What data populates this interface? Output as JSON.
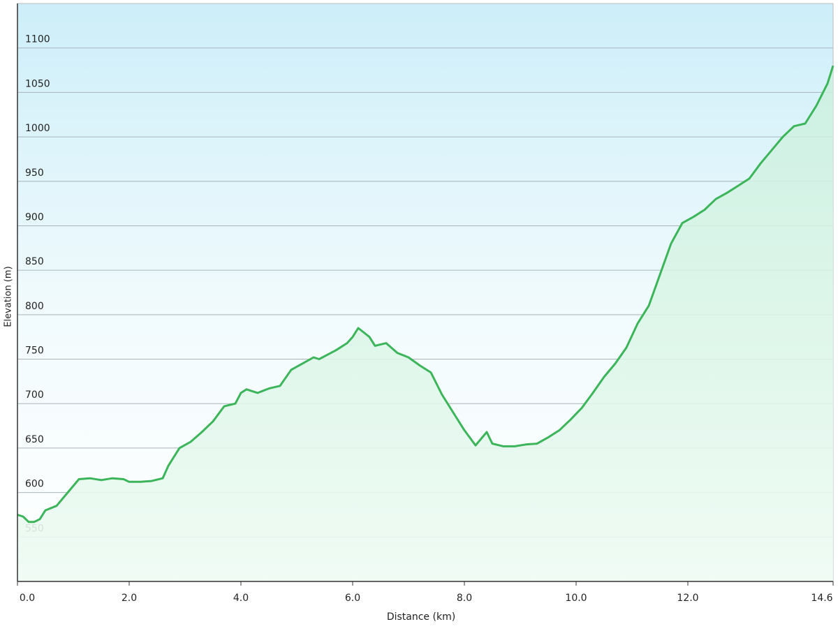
{
  "chart_data": {
    "type": "area",
    "x_label": "Distance  (km)",
    "y_label": "Elevation (m)",
    "x": [
      0.0,
      0.1,
      0.2,
      0.3,
      0.4,
      0.5,
      0.7,
      0.9,
      1.1,
      1.3,
      1.5,
      1.7,
      1.9,
      2.0,
      2.2,
      2.4,
      2.6,
      2.7,
      2.9,
      3.1,
      3.3,
      3.5,
      3.7,
      3.9,
      4.0,
      4.1,
      4.3,
      4.5,
      4.7,
      4.9,
      5.1,
      5.3,
      5.4,
      5.7,
      5.9,
      6.0,
      6.1,
      6.3,
      6.4,
      6.6,
      6.8,
      7.0,
      7.2,
      7.4,
      7.6,
      7.8,
      8.0,
      8.2,
      8.4,
      8.5,
      8.7,
      8.9,
      9.1,
      9.3,
      9.5,
      9.7,
      9.9,
      10.1,
      10.3,
      10.5,
      10.7,
      10.9,
      11.1,
      11.3,
      11.5,
      11.7,
      11.9,
      12.1,
      12.3,
      12.5,
      12.7,
      12.9,
      13.1,
      13.3,
      13.5,
      13.7,
      13.9,
      14.1,
      14.3,
      14.5,
      14.6
    ],
    "values": [
      575,
      573,
      567,
      567,
      570,
      580,
      585,
      600,
      615,
      616,
      614,
      616,
      615,
      612,
      612,
      613,
      616,
      630,
      650,
      657,
      668,
      680,
      697,
      700,
      712,
      716,
      712,
      717,
      720,
      738,
      745,
      752,
      750,
      760,
      768,
      775,
      785,
      775,
      765,
      768,
      757,
      752,
      743,
      735,
      710,
      690,
      670,
      653,
      668,
      655,
      652,
      652,
      654,
      655,
      662,
      670,
      682,
      695,
      712,
      730,
      745,
      763,
      790,
      810,
      845,
      880,
      903,
      910,
      918,
      930,
      937,
      945,
      953,
      970,
      985,
      1000,
      1012,
      1015,
      1035,
      1060,
      1080
    ],
    "color": "#3cb55a",
    "xlim": [
      0,
      14.6
    ],
    "xticks": [
      {
        "value": 0,
        "label": "0.0"
      },
      {
        "value": 2,
        "label": "2.0"
      },
      {
        "value": 4,
        "label": "4.0"
      },
      {
        "value": 6,
        "label": "6.0"
      },
      {
        "value": 8,
        "label": "8.0"
      },
      {
        "value": 10,
        "label": "10.0"
      },
      {
        "value": 12,
        "label": "12.0"
      },
      14.6
    ],
    "ylim": [
      500,
      1150
    ],
    "yticks": [
      550,
      600,
      650,
      700,
      750,
      800,
      850,
      900,
      950,
      1000,
      1050,
      1100
    ],
    "grid": true
  }
}
